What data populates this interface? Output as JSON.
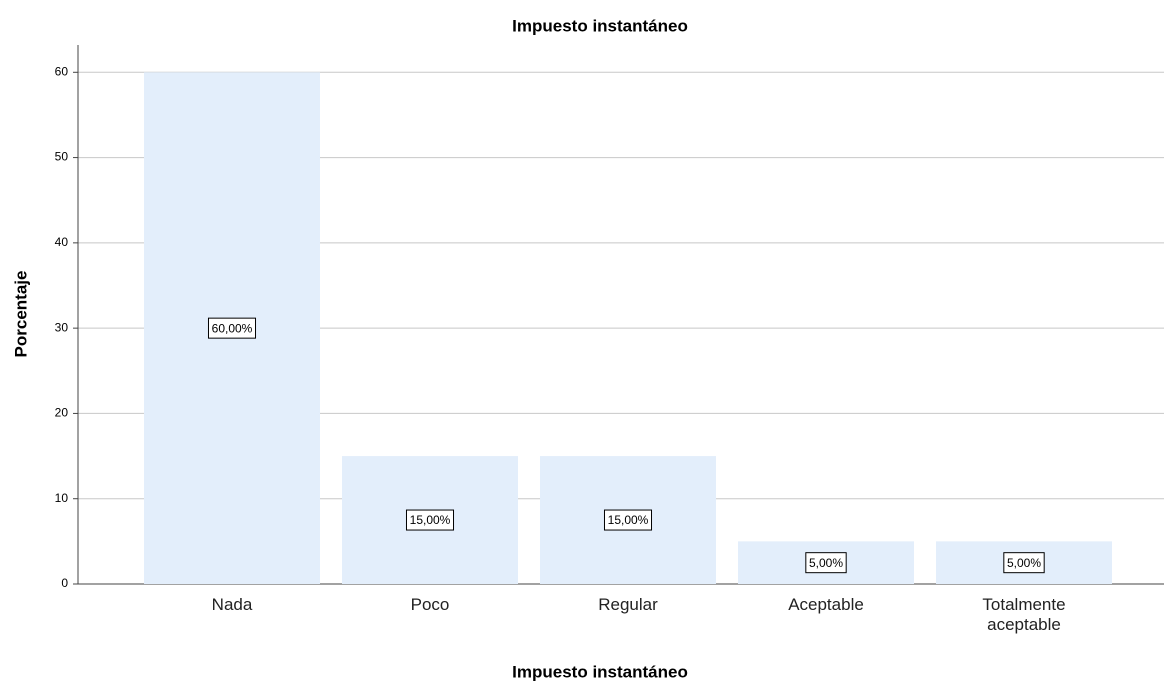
{
  "chart_data": {
    "type": "bar",
    "title": "Impuesto instantáneo",
    "x_label": "Impuesto instantáneo",
    "y_label": "Porcentaje",
    "categories": [
      "Nada",
      "Poco",
      "Regular",
      "Aceptable",
      "Totalmente aceptable"
    ],
    "values": [
      60,
      15,
      15,
      5,
      5
    ],
    "value_labels": [
      "60,00%",
      "15,00%",
      "15,00%",
      "5,00%",
      "5,00%"
    ],
    "color": "#e3eefb",
    "ylim": [
      0,
      63.2
    ],
    "yticks": [
      0,
      10,
      20,
      30,
      40,
      50,
      60
    ],
    "grid": true
  }
}
